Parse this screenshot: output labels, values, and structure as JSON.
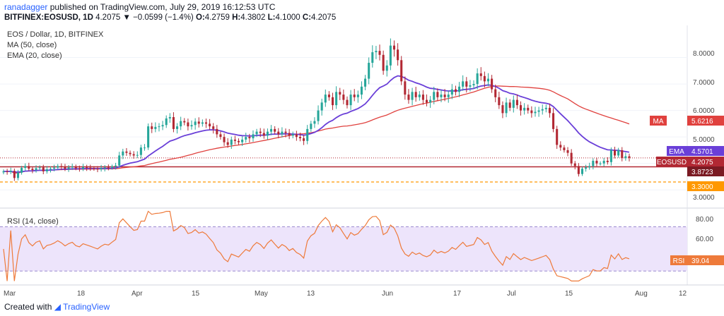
{
  "header": {
    "author": "ranadagger",
    "published_text": "published on TradingView.com, July 29, 2019 16:12:53 UTC",
    "symbol": "BITFINEX:EOSUSD, 1D",
    "last": "4.2075",
    "change": "−0.0599 (−1.4%)",
    "open_label": "O:",
    "open": "4.2759",
    "high_label": "H:",
    "high": "4.3802",
    "low_label": "L:",
    "low": "4.1000",
    "close_label": "C:",
    "close": "4.2075"
  },
  "footer": {
    "created_with": "Created with",
    "brand": "TradingView"
  },
  "colors": {
    "up": "#26a69a",
    "down": "#b22833",
    "ema": "#6a3fd8",
    "ma": "#e0413e",
    "rsi": "#ee7a3a",
    "support": "#b22833",
    "support2": "#ff9800"
  },
  "chart_data": [
    {
      "type": "candlestick",
      "title": "EOS / Dollar, 1D, BITFINEX",
      "indicators_legend": [
        "MA (50, close)",
        "EMA (20, close)"
      ],
      "ylim": [
        2.5,
        9.0
      ],
      "y_ticks": [
        "8.0000",
        "7.0000",
        "6.0000",
        "5.0000",
        "4.0000",
        "3.0000"
      ],
      "x_tick_labels": [
        "Mar",
        "18",
        "Apr",
        "15",
        "May",
        "13",
        "Jun",
        "17",
        "Jul",
        "15",
        "Aug",
        "12"
      ],
      "close": [
        3.7,
        3.68,
        3.72,
        3.45,
        3.65,
        3.83,
        3.9,
        3.8,
        3.75,
        3.82,
        3.85,
        3.7,
        3.78,
        3.8,
        3.84,
        3.9,
        3.86,
        3.8,
        3.85,
        3.88,
        3.82,
        3.8,
        3.86,
        3.84,
        3.82,
        3.8,
        3.78,
        3.82,
        3.85,
        3.84,
        3.88,
        3.92,
        4.3,
        4.45,
        4.4,
        4.35,
        4.3,
        4.32,
        4.6,
        4.6,
        5.4,
        5.3,
        5.38,
        5.4,
        5.45,
        5.7,
        5.75,
        5.3,
        5.4,
        5.6,
        5.55,
        5.4,
        5.45,
        5.58,
        5.5,
        5.55,
        5.5,
        5.4,
        5.3,
        5.1,
        5.0,
        4.8,
        4.7,
        4.9,
        4.85,
        4.8,
        4.9,
        5.0,
        4.95,
        5.1,
        5.2,
        5.15,
        5.05,
        5.2,
        5.3,
        5.2,
        5.1,
        5.2,
        5.15,
        5.05,
        5.1,
        5.0,
        4.95,
        4.85,
        5.3,
        5.5,
        5.6,
        6.0,
        6.3,
        6.6,
        6.5,
        6.2,
        6.7,
        6.6,
        6.4,
        6.2,
        6.6,
        6.5,
        6.6,
        6.9,
        7.2,
        7.8,
        8.2,
        8.25,
        8.1,
        7.5,
        7.7,
        8.45,
        8.3,
        7.9,
        7.1,
        6.6,
        6.4,
        6.7,
        6.5,
        6.6,
        6.4,
        6.3,
        6.4,
        6.7,
        6.5,
        6.6,
        6.5,
        6.6,
        6.8,
        6.7,
        6.9,
        7.1,
        6.9,
        6.95,
        7.0,
        7.4,
        7.3,
        7.1,
        7.2,
        6.8,
        6.5,
        6.2,
        5.9,
        6.3,
        6.1,
        6.4,
        6.2,
        6.0,
        6.1,
        6.0,
        5.9,
        5.95,
        6.0,
        6.05,
        6.1,
        5.9,
        5.3,
        4.7,
        4.6,
        4.5,
        4.4,
        4.0,
        3.9,
        3.6,
        3.8,
        3.85,
        3.9,
        4.1,
        4.0,
        4.0,
        4.1,
        4.05,
        4.5,
        4.3,
        4.5,
        4.2,
        4.27,
        4.21
      ],
      "ma_50_end": 5.6216,
      "ema_20_end": 4.5701,
      "last_price": 4.2075,
      "horizontal_lines": [
        {
          "name": "support",
          "value": 3.8723
        },
        {
          "name": "support2",
          "value": 3.3
        }
      ],
      "price_badges": [
        {
          "label": "MA",
          "value": "5.6216"
        },
        {
          "label": "EMA",
          "value": "4.5701"
        },
        {
          "label": "EOSUSD",
          "value": "4.2075"
        },
        {
          "label": "",
          "value": "3.8723"
        },
        {
          "label": "",
          "value": "3.3000"
        }
      ]
    },
    {
      "type": "line",
      "title": "RSI (14, close)",
      "ylim": [
        20,
        85
      ],
      "y_ticks": [
        "80.00",
        "60.00"
      ],
      "band": [
        30,
        70
      ],
      "last_badge": {
        "label": "RSI",
        "value": "39.04"
      }
    }
  ]
}
